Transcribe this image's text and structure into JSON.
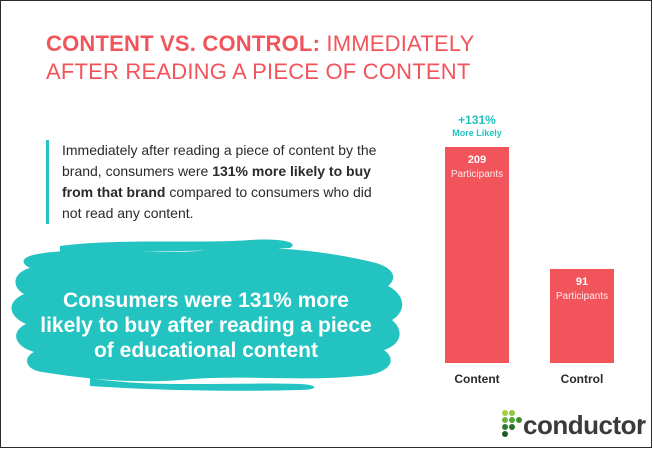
{
  "title": {
    "bold": "CONTENT VS. CONTROL:",
    "rest": "IMMEDIATELY AFTER READING A PIECE OF CONTENT"
  },
  "quote": {
    "part1": "Immediately after reading a piece of content by the brand, consumers were ",
    "bold": "131% more likely to buy from that brand",
    "part2": " compared to consumers who did not read any content."
  },
  "callout": "Consumers were 131% more likely to buy after reading a piece of educational content",
  "brand": {
    "name": "conductor"
  },
  "colors": {
    "accent": "#f2545b",
    "teal": "#22c3c0",
    "text": "#2a2a2a"
  },
  "chart_data": {
    "type": "bar",
    "categories": [
      "Content",
      "Control"
    ],
    "values": [
      209,
      91
    ],
    "value_unit_label": "Participants",
    "annotation": {
      "category": "Content",
      "line1": "+131%",
      "line2": "More Likely"
    },
    "ylim": [
      0,
      209
    ],
    "grid": false,
    "xlabel": "",
    "ylabel": ""
  }
}
